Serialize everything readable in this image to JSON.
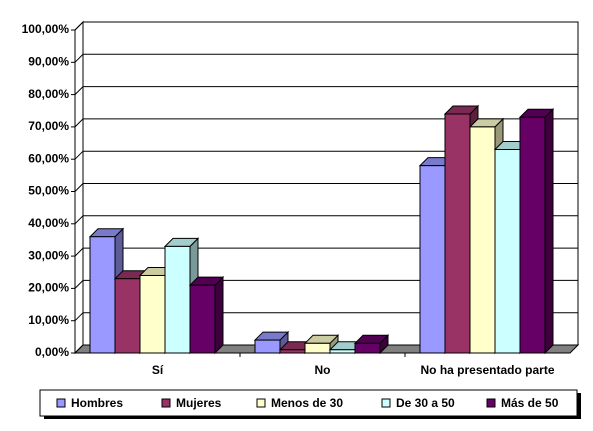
{
  "chart_data": {
    "type": "bar3d",
    "categories": [
      "Sí",
      "No",
      "No ha presentado parte"
    ],
    "series": [
      {
        "name": "Hombres",
        "color": "#9999ff",
        "values": [
          36,
          4,
          58
        ]
      },
      {
        "name": "Mujeres",
        "color": "#993366",
        "values": [
          23,
          1,
          74
        ]
      },
      {
        "name": "Menos de 30",
        "color": "#ffffcc",
        "values": [
          24,
          3,
          70
        ]
      },
      {
        "name": "De 30 a 50",
        "color": "#ccffff",
        "values": [
          33,
          1,
          63
        ]
      },
      {
        "name": "Más de 50",
        "color": "#660066",
        "values": [
          21,
          3,
          73
        ]
      }
    ],
    "ylim": [
      0,
      100
    ],
    "yticks": [
      {
        "value": 0,
        "label": "0,00%"
      },
      {
        "value": 10,
        "label": "10,00%"
      },
      {
        "value": 20,
        "label": "20,00%"
      },
      {
        "value": 30,
        "label": "30,00%"
      },
      {
        "value": 40,
        "label": "40,00%"
      },
      {
        "value": 50,
        "label": "50,00%"
      },
      {
        "value": 60,
        "label": "60,00%"
      },
      {
        "value": 70,
        "label": "70,00%"
      },
      {
        "value": 80,
        "label": "80,00%"
      },
      {
        "value": 90,
        "label": "90,00%"
      },
      {
        "value": 100,
        "label": "100,00%"
      }
    ],
    "grid": true,
    "legend": "bottom"
  }
}
